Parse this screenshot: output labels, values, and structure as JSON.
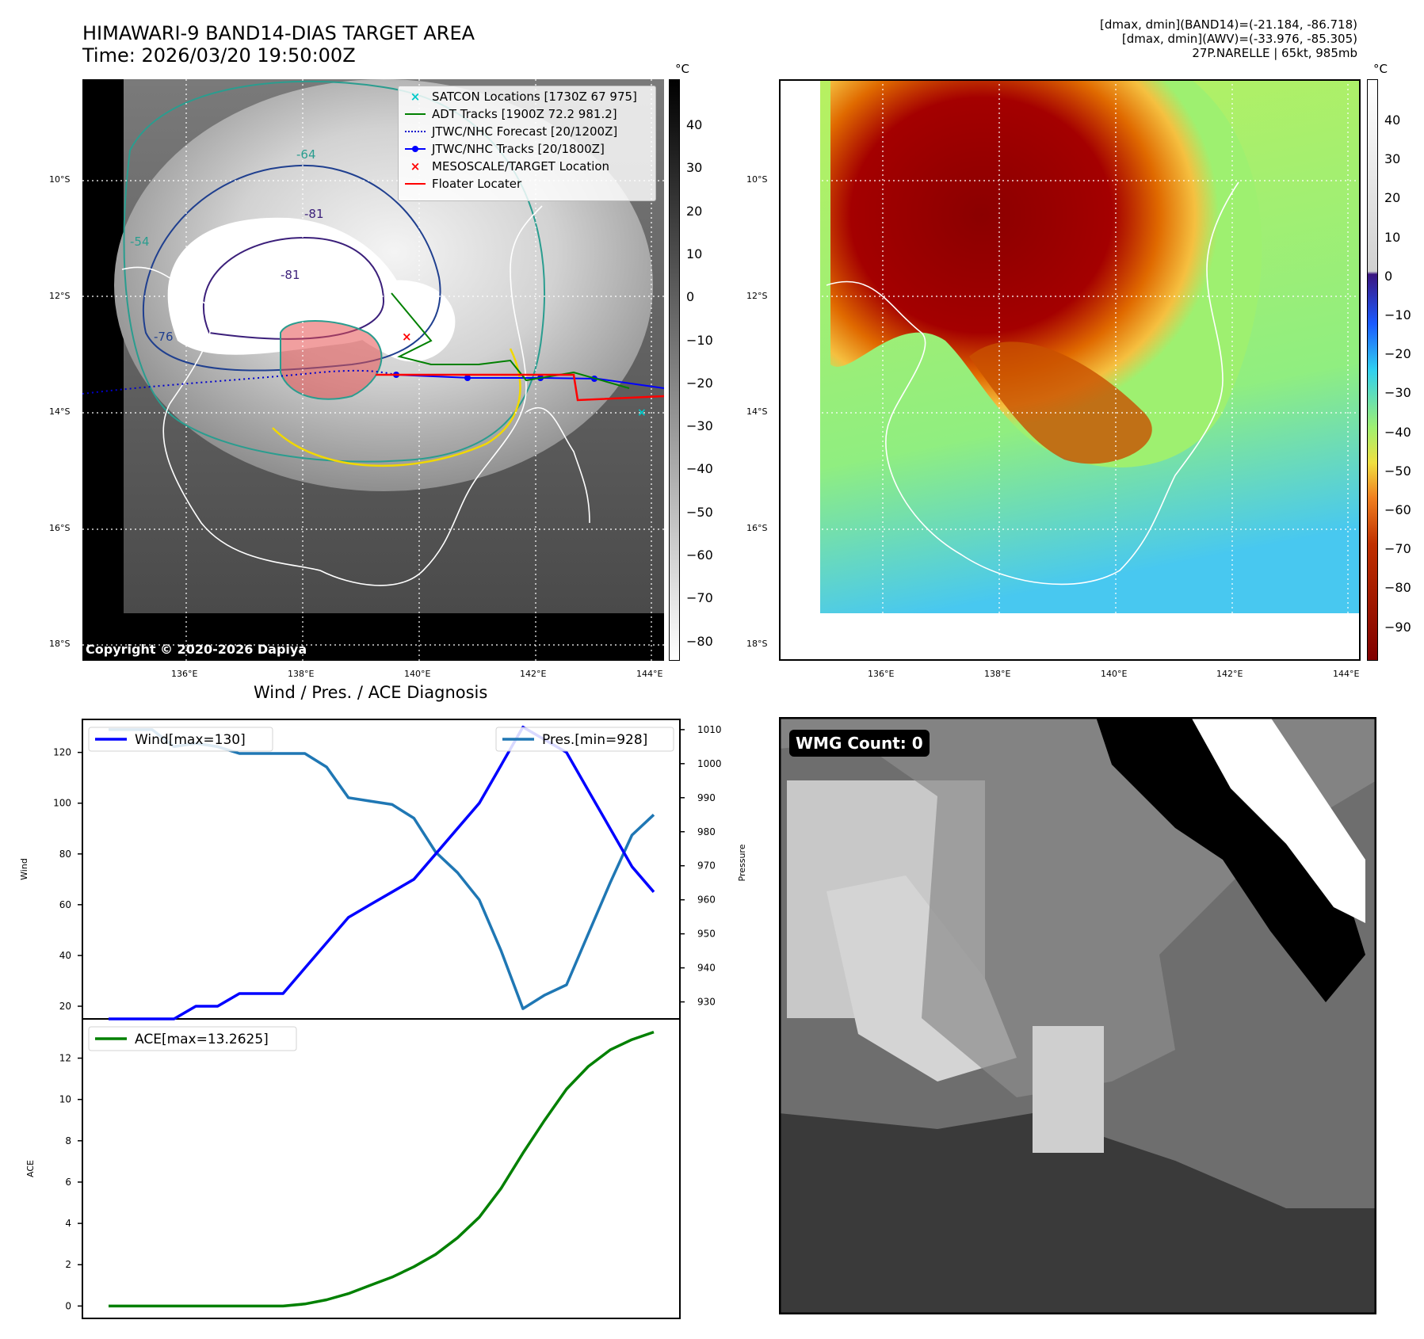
{
  "header": {
    "title_line1": "HIMAWARI-9 BAND14-DIAS TARGET AREA",
    "title_line2": "Time: 2026/03/20 19:50:00Z",
    "stats_line1": "[dmax, dmin](BAND14)=(-21.184, -86.718)",
    "stats_line2": "[dmax, dmin](AWV)=(-33.976, -85.305)",
    "stats_line3": "27P.NARELLE | 65kt, 985mb"
  },
  "map": {
    "lat_labels": [
      "10°S",
      "12°S",
      "14°S",
      "16°S",
      "18°S"
    ],
    "lon_labels": [
      "136°E",
      "138°E",
      "140°E",
      "142°E",
      "144°E"
    ],
    "copyright": "Copyright © 2020-2026 Dapiya",
    "contour_labels": [
      "-64",
      "-54",
      "-81",
      "-76",
      "-81"
    ],
    "legend": [
      {
        "label": "SATCON Locations [1730Z 67 975]",
        "color": "#00c8c8"
      },
      {
        "label": "ADT Tracks [1900Z 72.2 981.2]",
        "color": "#008000"
      },
      {
        "label": "JTWC/NHC Forecast [20/1200Z]",
        "color": "#0000cc"
      },
      {
        "label": "JTWC/NHC Tracks [20/1800Z]",
        "color": "#0000ff"
      },
      {
        "label": "MESOSCALE/TARGET Location",
        "color": "#ff0000"
      },
      {
        "label": "Floater Locater",
        "color": "#ff0000"
      }
    ]
  },
  "colorbar_left": {
    "unit": "°C",
    "ticks": [
      "40",
      "30",
      "20",
      "10",
      "0",
      "−10",
      "−20",
      "−30",
      "−40",
      "−50",
      "−60",
      "−70",
      "−80"
    ]
  },
  "colorbar_right": {
    "unit": "°C",
    "ticks": [
      "40",
      "30",
      "20",
      "10",
      "0",
      "−10",
      "−20",
      "−30",
      "−40",
      "−50",
      "−60",
      "−70",
      "−80",
      "−90"
    ]
  },
  "chart_data": [
    {
      "type": "line",
      "title": "Wind / Pres. / ACE Diagnosis",
      "ylabel": "Wind",
      "y2label": "Pressure",
      "ylim": [
        15,
        133
      ],
      "y2lim": [
        925,
        1013
      ],
      "yticks": [
        20,
        40,
        60,
        80,
        100,
        120
      ],
      "y2ticks": [
        930,
        940,
        950,
        960,
        970,
        980,
        990,
        1000,
        1010
      ],
      "series": [
        {
          "name": "Wind[max=130]",
          "color": "#0000ff",
          "axis": "left",
          "values": [
            15,
            15,
            15,
            15,
            20,
            20,
            25,
            25,
            25,
            35,
            45,
            55,
            60,
            65,
            70,
            80,
            90,
            100,
            115,
            130,
            125,
            120,
            105,
            90,
            75,
            65
          ]
        },
        {
          "name": "Pres.[min=928]",
          "color": "#1f77b4",
          "axis": "right",
          "values": [
            1010,
            1010,
            1010,
            1005,
            1006,
            1005,
            1003,
            1003,
            1003,
            1003,
            999,
            990,
            989,
            988,
            984,
            974,
            968,
            960,
            945,
            928,
            932,
            935,
            950,
            965,
            979,
            985
          ]
        },
        {
          "name": "ACE[max=13.2625]",
          "color": "#008000",
          "axis": "ace",
          "values": [
            0,
            0,
            0,
            0,
            0,
            0,
            0,
            0,
            0,
            0.1,
            0.3,
            0.6,
            1.0,
            1.4,
            1.9,
            2.5,
            3.3,
            4.3,
            5.7,
            7.4,
            9.0,
            10.5,
            11.6,
            12.4,
            12.9,
            13.2625
          ]
        }
      ],
      "ace_ylabel": "ACE",
      "ace_ylim": [
        -0.6,
        13.9
      ],
      "ace_yticks": [
        0,
        2,
        4,
        6,
        8,
        10,
        12
      ]
    }
  ],
  "wmg": {
    "label": "WMG Count: 0"
  }
}
